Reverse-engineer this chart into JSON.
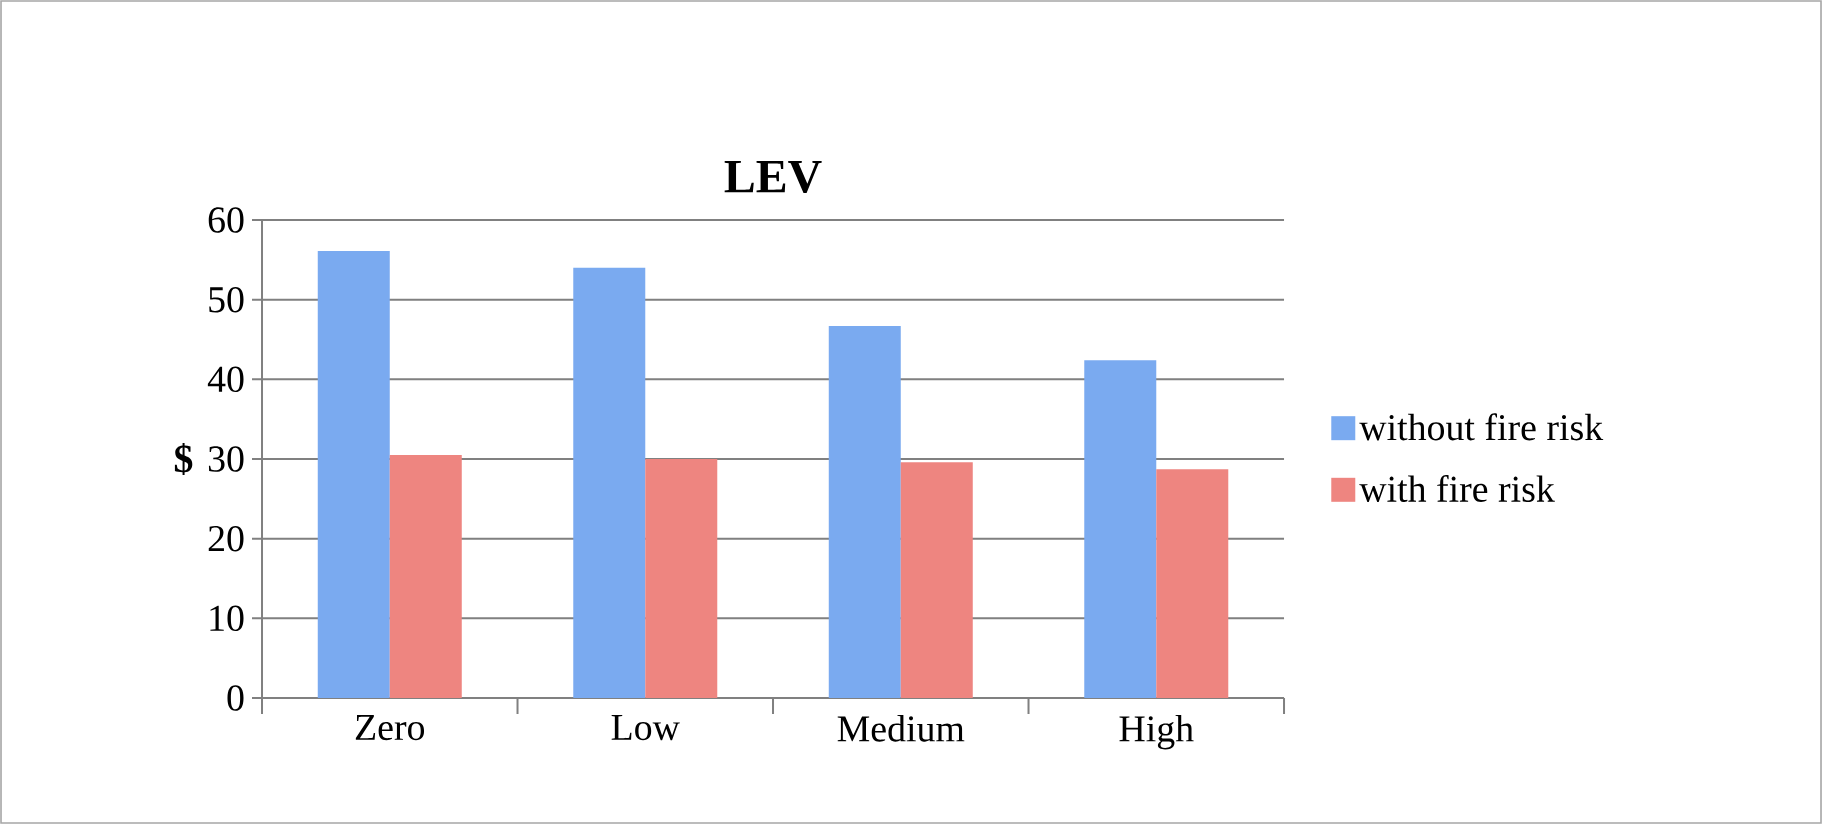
{
  "chart_data": {
    "type": "bar",
    "title": "LEV",
    "ylabel": "$",
    "categories": [
      "Zero",
      "Low",
      "Medium",
      "High"
    ],
    "series": [
      {
        "name": "without fire risk",
        "color": "#7aaaf0",
        "values": [
          56.1,
          54.0,
          46.7,
          42.4
        ]
      },
      {
        "name": "with fire risk",
        "color": "#ee8580",
        "values": [
          30.5,
          30.0,
          29.6,
          28.7
        ]
      }
    ],
    "ylim": [
      0,
      60
    ],
    "yticks": [
      0,
      10,
      20,
      30,
      40,
      50,
      60
    ],
    "grid": "y",
    "legend": "right"
  }
}
